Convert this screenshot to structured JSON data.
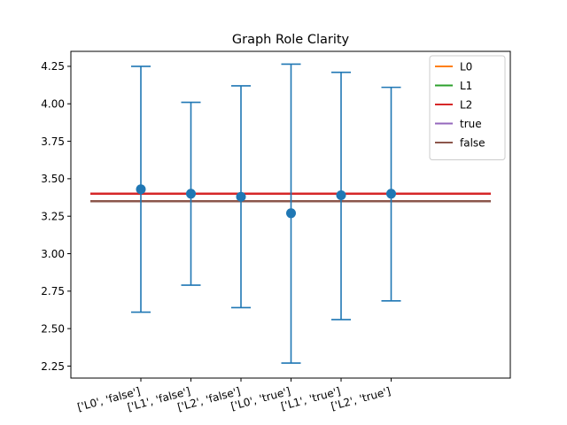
{
  "chart_data": {
    "type": "errorbar",
    "title": "Graph Role Clarity",
    "xlabel": "",
    "ylabel": "",
    "categories": [
      "['L0', 'false']",
      "['L1', 'false']",
      "['L2', 'false']",
      "['L0', 'true']",
      "['L1', 'true']",
      "['L2', 'true']"
    ],
    "points": [
      {
        "mean": 3.43,
        "low": 2.61,
        "high": 4.25
      },
      {
        "mean": 3.4,
        "low": 2.79,
        "high": 4.01
      },
      {
        "mean": 3.38,
        "low": 2.64,
        "high": 4.12
      },
      {
        "mean": 3.27,
        "low": 2.27,
        "high": 4.265
      },
      {
        "mean": 3.39,
        "low": 2.56,
        "high": 4.21
      },
      {
        "mean": 3.4,
        "low": 2.685,
        "high": 4.11
      }
    ],
    "hlines": [
      {
        "name": "L0",
        "value": 3.4,
        "color": "#ff7f0e"
      },
      {
        "name": "L1",
        "value": 3.4,
        "color": "#2ca02c"
      },
      {
        "name": "L2",
        "value": 3.4,
        "color": "#d62728"
      },
      {
        "name": "true",
        "value": 3.35,
        "color": "#9467bd"
      },
      {
        "name": "false",
        "value": 3.35,
        "color": "#8c564b"
      }
    ],
    "yticks": [
      "2.25",
      "2.50",
      "2.75",
      "3.00",
      "3.25",
      "3.50",
      "3.75",
      "4.00",
      "4.25"
    ],
    "ylim": [
      2.17,
      4.35
    ],
    "point_color": "#1f77b4",
    "legend_position": "top-right",
    "grid": false
  }
}
